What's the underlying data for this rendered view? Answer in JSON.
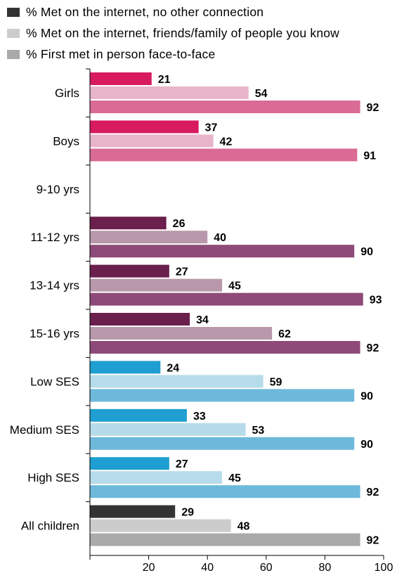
{
  "legend": [
    {
      "label": "% Met on the internet, no other connection",
      "color": "#333333"
    },
    {
      "label": "% Met on the internet, friends/family of people you know",
      "color": "#cccccc"
    },
    {
      "label": "% First met in person face-to-face",
      "color": "#aaaaaa"
    }
  ],
  "chart_data": {
    "type": "bar",
    "orientation": "horizontal",
    "xlim": [
      0,
      100
    ],
    "xticks": [
      20,
      40,
      60,
      80,
      100
    ],
    "grid": false,
    "legend_position": "top-left",
    "categories": [
      "Girls",
      "Boys",
      "9-10 yrs",
      "11-12 yrs",
      "13-14 yrs",
      "15-16 yrs",
      "Low  SES",
      "Medium SES",
      "High SES",
      "All children"
    ],
    "groups": [
      {
        "category": "Girls",
        "values": [
          21,
          54,
          92
        ],
        "colors": [
          "#d81b5e",
          "#e8b4c8",
          "#d96b94"
        ]
      },
      {
        "category": "Boys",
        "values": [
          37,
          42,
          91
        ],
        "colors": [
          "#d81b5e",
          "#e8b4c8",
          "#d96b94"
        ]
      },
      {
        "category": "9-10 yrs",
        "values": [
          null,
          null,
          null
        ],
        "colors": [
          "#6a1f4d",
          "#b898aa",
          "#8e4a78"
        ]
      },
      {
        "category": "11-12 yrs",
        "values": [
          26,
          40,
          90
        ],
        "colors": [
          "#6a1f4d",
          "#b898aa",
          "#8e4a78"
        ]
      },
      {
        "category": "13-14 yrs",
        "values": [
          27,
          45,
          93
        ],
        "colors": [
          "#6a1f4d",
          "#b898aa",
          "#8e4a78"
        ]
      },
      {
        "category": "15-16 yrs",
        "values": [
          34,
          62,
          92
        ],
        "colors": [
          "#6a1f4d",
          "#b898aa",
          "#8e4a78"
        ]
      },
      {
        "category": "Low  SES",
        "values": [
          24,
          59,
          90
        ],
        "colors": [
          "#1f9ed1",
          "#b6dbea",
          "#6cb9dc"
        ]
      },
      {
        "category": "Medium SES",
        "values": [
          33,
          53,
          90
        ],
        "colors": [
          "#1f9ed1",
          "#b6dbea",
          "#6cb9dc"
        ]
      },
      {
        "category": "High SES",
        "values": [
          27,
          45,
          92
        ],
        "colors": [
          "#1f9ed1",
          "#b6dbea",
          "#6cb9dc"
        ]
      },
      {
        "category": "All children",
        "values": [
          29,
          48,
          92
        ],
        "colors": [
          "#333333",
          "#cccccc",
          "#aaaaaa"
        ]
      }
    ]
  }
}
